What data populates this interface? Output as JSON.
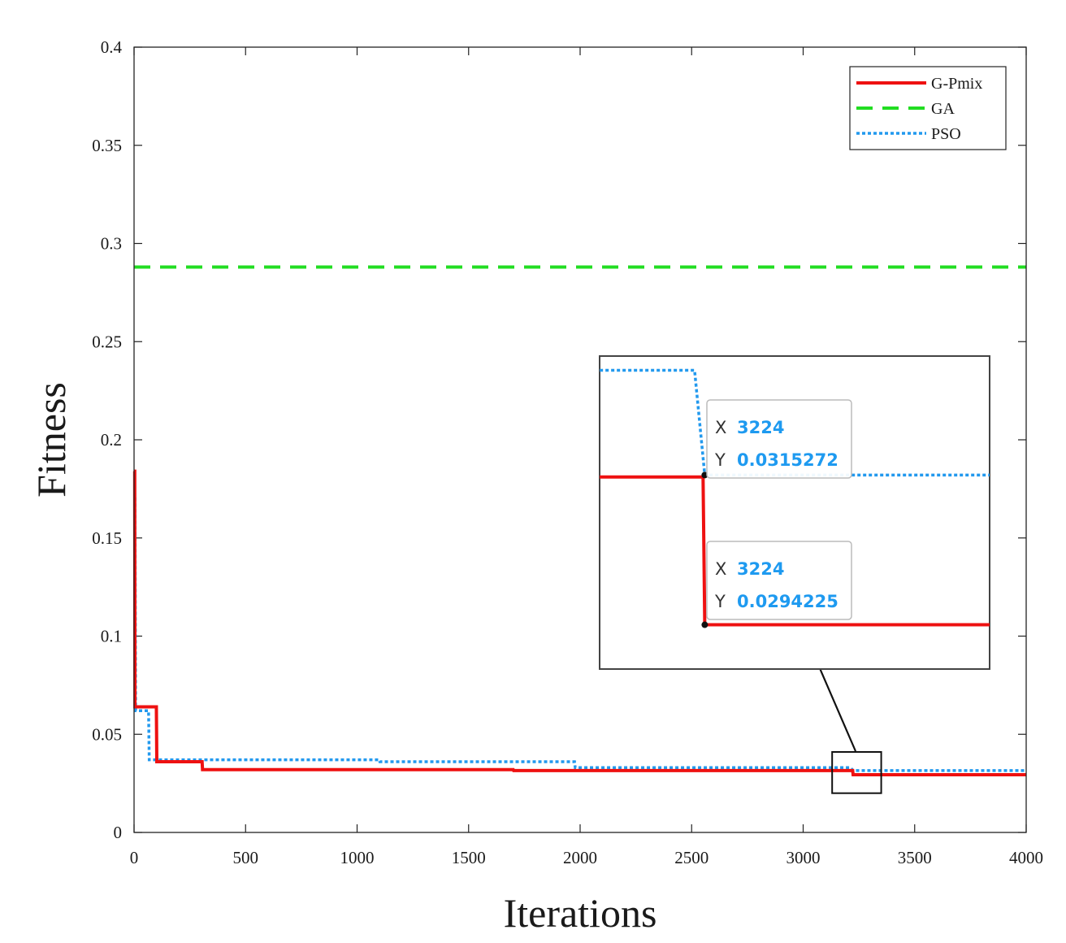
{
  "chart_data": {
    "type": "line",
    "xlabel": "Iterations",
    "ylabel": "Fitness",
    "xlim": [
      0,
      4000
    ],
    "ylim": [
      0,
      0.4
    ],
    "xticks": [
      {
        "value": 0,
        "label": "0"
      },
      {
        "value": 500,
        "label": "500"
      },
      {
        "value": 1000,
        "label": "1000"
      },
      {
        "value": 1500,
        "label": "1500"
      },
      {
        "value": 2000,
        "label": "2000"
      },
      {
        "value": 2500,
        "label": "2500"
      },
      {
        "value": 3000,
        "label": "3000"
      },
      {
        "value": 3500,
        "label": "3500"
      },
      {
        "value": 4000,
        "label": "4000"
      }
    ],
    "yticks": [
      {
        "value": 0,
        "label": "0"
      },
      {
        "value": 0.05,
        "label": "0.05"
      },
      {
        "value": 0.1,
        "label": "0.1"
      },
      {
        "value": 0.15,
        "label": "0.15"
      },
      {
        "value": 0.2,
        "label": "0.2"
      },
      {
        "value": 0.25,
        "label": "0.25"
      },
      {
        "value": 0.3,
        "label": "0.3"
      },
      {
        "value": 0.35,
        "label": "0.35"
      },
      {
        "value": 0.4,
        "label": "0.4"
      }
    ],
    "legend_position": "top-right",
    "series": [
      {
        "name": "G-Pmix",
        "color": "#ee1111",
        "style": "solid",
        "points": [
          [
            0,
            0.184
          ],
          [
            3,
            0.184
          ],
          [
            4,
            0.064
          ],
          [
            100,
            0.064
          ],
          [
            102,
            0.036
          ],
          [
            305,
            0.036
          ],
          [
            307,
            0.032
          ],
          [
            1700,
            0.032
          ],
          [
            1702,
            0.0315
          ],
          [
            3222,
            0.0315
          ],
          [
            3224,
            0.0294225
          ],
          [
            4000,
            0.0294225
          ]
        ]
      },
      {
        "name": "GA",
        "color": "#22dd22",
        "style": "dashed",
        "points": [
          [
            0,
            0.288
          ],
          [
            4000,
            0.288
          ]
        ]
      },
      {
        "name": "PSO",
        "color": "#2299ee",
        "style": "dotted",
        "points": [
          [
            0,
            0.17
          ],
          [
            4,
            0.17
          ],
          [
            7,
            0.062
          ],
          [
            65,
            0.062
          ],
          [
            68,
            0.037
          ],
          [
            1100,
            0.037
          ],
          [
            1102,
            0.036
          ],
          [
            1975,
            0.036
          ],
          [
            1978,
            0.033
          ],
          [
            3212,
            0.033
          ],
          [
            3224,
            0.0315272
          ],
          [
            4000,
            0.0315272
          ]
        ]
      }
    ],
    "zoom_region": {
      "x": [
        3130,
        3350
      ],
      "y": [
        0.02,
        0.041
      ]
    },
    "inset": {
      "x_range": [
        3100,
        3560
      ],
      "y_range": [
        0.0288,
        0.0332
      ],
      "tooltips": [
        {
          "series": "PSO",
          "x_label": "X",
          "x_value": "3224",
          "y_label": "Y",
          "y_value": "0.0315272",
          "x": 3224,
          "y": 0.0315272
        },
        {
          "series": "G-Pmix",
          "x_label": "X",
          "x_value": "3224",
          "y_label": "Y",
          "y_value": "0.0294225",
          "x": 3224,
          "y": 0.0294225
        }
      ]
    },
    "tooltip_value_color": "#1e9af0"
  }
}
